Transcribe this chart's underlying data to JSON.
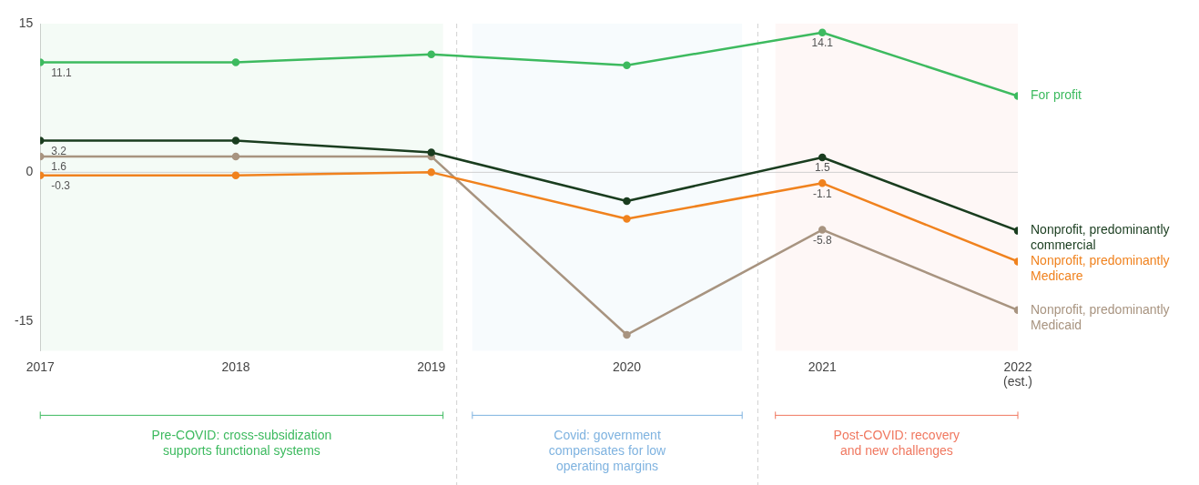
{
  "chart_data": {
    "type": "line",
    "x": [
      2017,
      2018,
      2019,
      2020,
      2021,
      2022
    ],
    "xlim": [
      2017,
      2022
    ],
    "xticks": [
      2017,
      2018,
      2019,
      2020,
      2021,
      {
        "value": 2022,
        "label": "2022 (est.)"
      }
    ],
    "ylim": [
      -18,
      15
    ],
    "yticks": [
      -15,
      0,
      15
    ],
    "grid": false,
    "legend": false,
    "marker": "circle",
    "series": [
      {
        "name": "For profit",
        "color": "#3dba5f",
        "values": [
          11.1,
          11.1,
          11.9,
          10.8,
          14.1,
          7.7
        ],
        "value_labels": [
          "11.1",
          null,
          null,
          null,
          "14.1",
          null
        ]
      },
      {
        "name": "Nonprofit, predominantly commercial",
        "color": "#1a3d1f",
        "values": [
          3.2,
          3.2,
          2.0,
          -2.9,
          1.5,
          -5.9
        ],
        "value_labels": [
          "3.2",
          null,
          null,
          null,
          "1.5",
          null
        ]
      },
      {
        "name": "Nonprofit, predominantly Medicare",
        "color": "#f0821e",
        "values": [
          -0.3,
          -0.3,
          0,
          -4.7,
          -1.1,
          -9.0
        ],
        "value_labels": [
          "-0.3",
          null,
          null,
          null,
          "-1.1",
          null
        ]
      },
      {
        "name": "Nonprofit, predominantly Medicaid",
        "color": "#a89480",
        "values": [
          1.6,
          1.6,
          1.6,
          -16.4,
          -5.8,
          -13.9
        ],
        "value_labels": [
          "1.6",
          null,
          null,
          null,
          "-5.8",
          null
        ]
      }
    ],
    "ref_lines": [
      {
        "axis": "y",
        "value": 0,
        "color": "#d0d0d0",
        "line_style": "solid"
      },
      {
        "axis": "x",
        "value": 2019.13,
        "color": "#d0d0d0",
        "line_style": "dashed"
      },
      {
        "axis": "x",
        "value": 2020.67,
        "color": "#d0d0d0",
        "line_style": "dashed"
      }
    ],
    "bands": [
      {
        "axis": "x",
        "from": 2017,
        "to": 2019.06,
        "label": "Pre-COVID: cross-subsidization supports functional systems",
        "color": "#3dba5f"
      },
      {
        "axis": "x",
        "from": 2019.21,
        "to": 2020.59,
        "label": "Covid: government compensates for low operating margins",
        "color": "#7fb3e0"
      },
      {
        "axis": "x",
        "from": 2020.76,
        "to": 2022,
        "label": "Post-COVID: recovery and new challenges",
        "color": "#f07860"
      }
    ]
  }
}
